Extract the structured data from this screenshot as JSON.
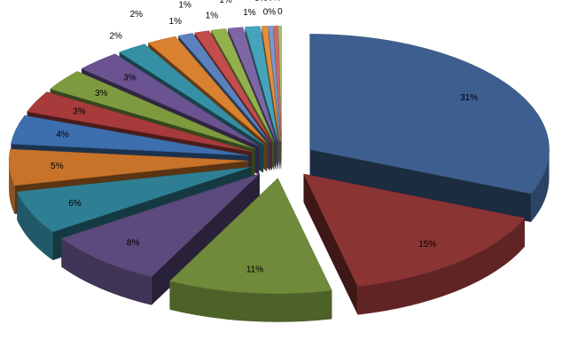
{
  "chart_data": {
    "type": "pie",
    "values": [
      31,
      15,
      11,
      8,
      6,
      5,
      4,
      3,
      3,
      3,
      2,
      2,
      1,
      1,
      1,
      1,
      1,
      0.4,
      0.3,
      0.3,
      0.2
    ],
    "value_labels": [
      "31%",
      "15%",
      "11%",
      "8%",
      "6%",
      "5%",
      "4%",
      "3%",
      "3%",
      "3%",
      "2%",
      "2%",
      "1%",
      "1%",
      "1%",
      "1%",
      "1%",
      "0%",
      "0%",
      "0%",
      "0"
    ],
    "colors": [
      "#3d5f8f",
      "#8b3434",
      "#6f8a3a",
      "#5c4a7c",
      "#2f7f94",
      "#c8732a",
      "#3d6eae",
      "#a73b3b",
      "#7d9a3f",
      "#6a5390",
      "#3590a6",
      "#d9812e",
      "#5b82bd",
      "#c34c4c",
      "#92b04c",
      "#7e66a5",
      "#45a4bc",
      "#e09042",
      "#7b9bcc",
      "#cf6a6a",
      "#a7c46a"
    ]
  }
}
